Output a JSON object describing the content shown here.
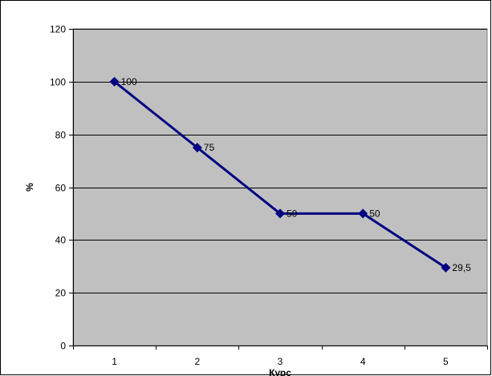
{
  "chart_data": {
    "type": "line",
    "title": "",
    "xlabel": "Курс",
    "ylabel": "%",
    "categories": [
      "1",
      "2",
      "3",
      "4",
      "5"
    ],
    "series": [
      {
        "values": [
          100,
          75,
          50,
          50,
          29.5
        ],
        "data_labels": [
          "100",
          "75",
          "50",
          "50",
          "29,5"
        ],
        "color": "#000080",
        "marker": "diamond"
      }
    ],
    "ylim": [
      0,
      120
    ],
    "yticks": [
      "0",
      "20",
      "40",
      "60",
      "80",
      "100",
      "120"
    ],
    "ytick_values": [
      0,
      20,
      40,
      60,
      80,
      100,
      120
    ],
    "grid": true,
    "legend": "none",
    "plot_background": "#c0c0c0"
  }
}
